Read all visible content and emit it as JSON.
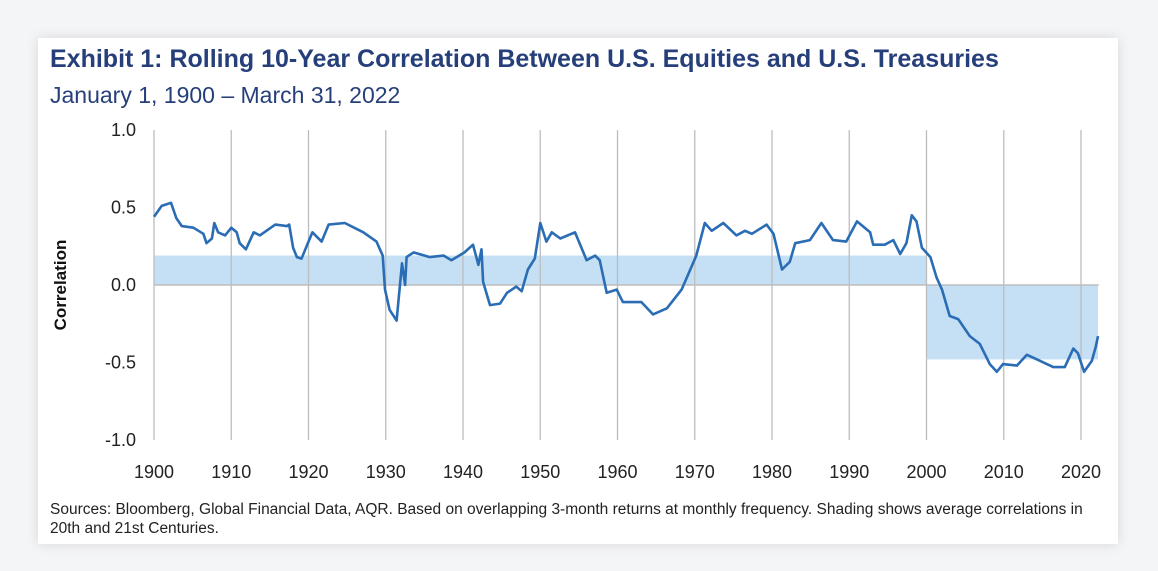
{
  "chart_data": {
    "type": "line",
    "title": "Exhibit 1: Rolling 10-Year Correlation Between U.S. Equities and U.S. Treasuries",
    "subtitle": "January 1, 1900 – March 31, 2022",
    "xlabel": "",
    "ylabel": "Correlation",
    "xlim": [
      1900,
      2022.3
    ],
    "ylim": [
      -1.0,
      1.0
    ],
    "x_ticks": [
      "1900",
      "1910",
      "1920",
      "1930",
      "1940",
      "1950",
      "1960",
      "1970",
      "1980",
      "1990",
      "2000",
      "2010",
      "2020"
    ],
    "y_ticks": [
      "1.0",
      "0.5",
      "0.0",
      "-0.5",
      "-1.0"
    ],
    "grid": "vertical",
    "line_color": "#2a6db5",
    "shade_color": "#c5e0f4",
    "shading": [
      {
        "x": [
          1900,
          2000
        ],
        "value": 0.19
      },
      {
        "x": [
          2000,
          2022.2
        ],
        "value": -0.48
      }
    ],
    "series": [
      {
        "x": [
          1900,
          1901,
          1902.2,
          1902.9,
          1903.6,
          1905.1,
          1906.4,
          1906.8,
          1907.5,
          1907.8,
          1908.3,
          1909.2,
          1910,
          1910.7,
          1911.1,
          1911.9,
          1912.9,
          1913.7,
          1915.7,
          1917.2,
          1917.5,
          1918,
          1918.5,
          1919.1,
          1920.5,
          1921.7,
          1922.6,
          1924.7,
          1927.1,
          1928.8,
          1929.6,
          1929.9,
          1930.5,
          1931.4,
          1932.1,
          1932.5,
          1932.7,
          1933.6,
          1935.7,
          1937.5,
          1938.5,
          1940.2,
          1941.3,
          1942,
          1942.4,
          1942.6,
          1943.5,
          1944.8,
          1945.7,
          1946.9,
          1947.6,
          1948.4,
          1949.3,
          1950,
          1950.8,
          1951.5,
          1952.6,
          1954.5,
          1956,
          1957.1,
          1957.7,
          1958.6,
          1959.9,
          1960.7,
          1963.1,
          1964.6,
          1966.4,
          1968.3,
          1970.2,
          1971.3,
          1972.2,
          1973.7,
          1975.4,
          1976.5,
          1977.4,
          1979.3,
          1980.2,
          1981.3,
          1982.3,
          1983,
          1984.9,
          1986.4,
          1987.9,
          1989.6,
          1991,
          1992.7,
          1993.1,
          1994.6,
          1995.7,
          1996.6,
          1997.4,
          1998.1,
          1998.7,
          1999.4,
          2000.5,
          2001.3,
          2002,
          2003,
          2004.1,
          2005.6,
          2006.9,
          2008.2,
          2009.1,
          2009.9,
          2011.7,
          2013,
          2014.3,
          2016.4,
          2017.9,
          2019,
          2019.6,
          2020.4,
          2021.4,
          2021.9,
          2022.2
        ],
        "y": [
          0.44,
          0.51,
          0.53,
          0.43,
          0.38,
          0.37,
          0.33,
          0.27,
          0.3,
          0.4,
          0.34,
          0.32,
          0.37,
          0.34,
          0.27,
          0.23,
          0.34,
          0.32,
          0.39,
          0.38,
          0.39,
          0.24,
          0.18,
          0.17,
          0.34,
          0.28,
          0.39,
          0.4,
          0.34,
          0.28,
          0.19,
          -0.03,
          -0.16,
          -0.23,
          0.14,
          0.0,
          0.18,
          0.21,
          0.18,
          0.19,
          0.16,
          0.21,
          0.26,
          0.13,
          0.23,
          0.02,
          -0.13,
          -0.12,
          -0.05,
          -0.01,
          -0.04,
          0.1,
          0.17,
          0.4,
          0.28,
          0.34,
          0.3,
          0.34,
          0.16,
          0.19,
          0.16,
          -0.05,
          -0.03,
          -0.11,
          -0.11,
          -0.19,
          -0.15,
          -0.03,
          0.19,
          0.4,
          0.35,
          0.4,
          0.32,
          0.35,
          0.33,
          0.39,
          0.33,
          0.1,
          0.15,
          0.27,
          0.29,
          0.4,
          0.29,
          0.28,
          0.41,
          0.34,
          0.26,
          0.26,
          0.29,
          0.2,
          0.27,
          0.45,
          0.41,
          0.24,
          0.18,
          0.05,
          -0.03,
          -0.2,
          -0.22,
          -0.33,
          -0.38,
          -0.51,
          -0.56,
          -0.51,
          -0.52,
          -0.45,
          -0.48,
          -0.53,
          -0.53,
          -0.41,
          -0.44,
          -0.56,
          -0.49,
          -0.4,
          -0.33
        ]
      }
    ],
    "source": "Sources: Bloomberg, Global Financial Data, AQR. Based on overlapping 3-month returns at monthly frequency. Shading shows average correlations in 20th and 21st Centuries."
  }
}
